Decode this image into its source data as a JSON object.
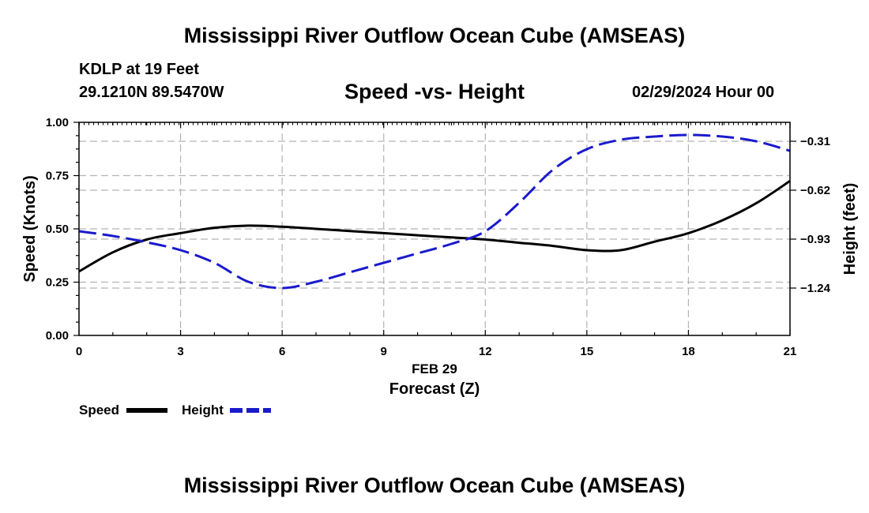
{
  "header": {
    "title": "Mississippi River Outflow Ocean Cube (AMSEAS)",
    "station": "KDLP at 19 Feet",
    "coords": "29.1210N  89.5470W",
    "subtitle": "Speed -vs- Height",
    "datetime": "02/29/2024 Hour 00"
  },
  "footer": {
    "title": "Mississippi River Outflow Ocean Cube (AMSEAS)"
  },
  "colors": {
    "speed": "#000000",
    "height": "#1a1acc",
    "grid": "#b4b4b4"
  },
  "chart_data": {
    "type": "line",
    "title": "Speed -vs- Height",
    "xlabel": "Forecast (Z)",
    "date_label": "FEB 29",
    "ylabel": "Speed (Knots)",
    "y2label": "Height (feet)",
    "xlim": [
      0,
      21
    ],
    "ylim": [
      0,
      1
    ],
    "y2lim": [
      -1.54,
      -0.19
    ],
    "x_ticks": [
      0,
      3,
      6,
      9,
      12,
      15,
      18,
      21
    ],
    "x_tick_labels": [
      "0",
      "3",
      "6",
      "9",
      "12",
      "15",
      "18",
      "21"
    ],
    "y_ticks": [
      0,
      0.25,
      0.5,
      0.75,
      1.0
    ],
    "y_tick_labels": [
      "0.00",
      "0.25",
      "0.50",
      "0.75",
      "1.00"
    ],
    "y2_ticks": [
      -0.31,
      -0.62,
      -0.93,
      -1.24
    ],
    "y2_tick_labels": [
      "−0.31",
      "−0.62",
      "−0.93",
      "−1.24"
    ],
    "grid": true,
    "legend_position": "bottom-left",
    "series": [
      {
        "name": "Speed",
        "axis": "left",
        "style": "solid",
        "x": [
          0,
          1,
          2,
          3,
          4,
          5,
          6,
          7,
          8,
          9,
          10,
          11,
          12,
          13,
          14,
          15,
          16,
          17,
          18,
          19,
          20,
          21
        ],
        "values": [
          0.3,
          0.39,
          0.45,
          0.48,
          0.505,
          0.515,
          0.51,
          0.5,
          0.49,
          0.48,
          0.47,
          0.46,
          0.45,
          0.435,
          0.42,
          0.4,
          0.4,
          0.44,
          0.48,
          0.54,
          0.62,
          0.725
        ]
      },
      {
        "name": "Height",
        "axis": "right",
        "style": "dashed",
        "x": [
          0,
          1,
          2,
          3,
          4,
          5,
          6,
          7,
          8,
          9,
          10,
          11,
          12,
          13,
          14,
          15,
          16,
          17,
          18,
          19,
          20,
          21
        ],
        "values": [
          -0.88,
          -0.91,
          -0.95,
          -1.0,
          -1.08,
          -1.2,
          -1.24,
          -1.2,
          -1.14,
          -1.08,
          -1.02,
          -0.96,
          -0.88,
          -0.7,
          -0.49,
          -0.36,
          -0.3,
          -0.28,
          -0.27,
          -0.28,
          -0.31,
          -0.37
        ]
      }
    ]
  }
}
